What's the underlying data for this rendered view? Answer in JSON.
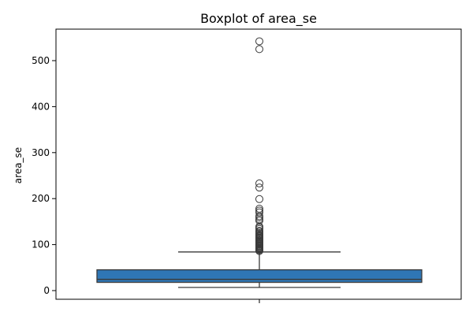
{
  "chart_data": {
    "type": "boxplot",
    "title": "Boxplot of area_se",
    "xlabel": "",
    "ylabel": "area_se",
    "ylim": [
      -10,
      565
    ],
    "yticks": [
      0,
      100,
      200,
      300,
      400,
      500
    ],
    "grid": false,
    "legend": "none",
    "box": {
      "whisker_low": 6.8,
      "q1": 17.9,
      "median": 24.5,
      "q3": 45.2,
      "whisker_high": 84.0,
      "fill": "#2f76b5",
      "edge": "#3a3a3a"
    },
    "outliers": [
      86,
      88,
      89,
      90,
      91,
      93,
      94,
      96,
      97,
      98,
      100,
      102,
      104,
      106,
      107,
      109,
      111,
      113,
      115,
      116,
      118,
      120,
      122,
      125,
      128,
      130,
      134,
      137,
      139,
      152,
      155,
      159,
      162,
      170,
      174,
      178,
      199,
      224,
      233,
      525,
      542
    ]
  }
}
